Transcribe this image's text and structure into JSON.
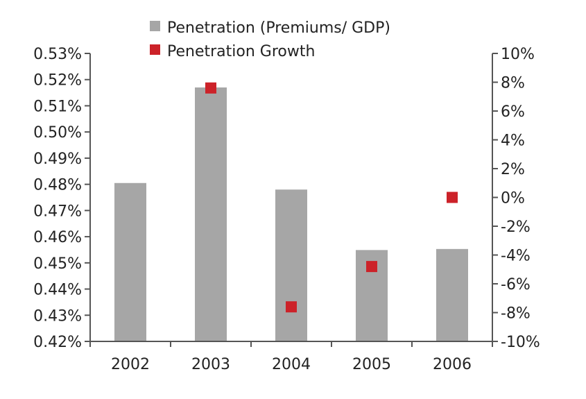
{
  "chart_data": {
    "type": "bar",
    "categories": [
      "2002",
      "2003",
      "2004",
      "2005",
      "2006"
    ],
    "series": [
      {
        "name": "Penetration (Premiums/ GDP)",
        "kind": "bar",
        "axis": "left",
        "color": "#a6a6a6",
        "values": [
          0.4805,
          0.517,
          0.478,
          0.4549,
          0.4553
        ]
      },
      {
        "name": "Penetration Growth",
        "kind": "scatter",
        "axis": "right",
        "color": "#cc2229",
        "values": [
          null,
          7.6,
          -7.6,
          -4.8,
          0.0
        ]
      }
    ],
    "y_left": {
      "ylim": [
        0.42,
        0.53
      ],
      "ticks": [
        0.42,
        0.43,
        0.44,
        0.45,
        0.46,
        0.47,
        0.48,
        0.49,
        0.5,
        0.51,
        0.52,
        0.53
      ],
      "tick_labels": [
        "0.42%",
        "0.43%",
        "0.44%",
        "0.45%",
        "0.46%",
        "0.47%",
        "0.48%",
        "0.49%",
        "0.50%",
        "0.51%",
        "0.52%",
        "0.53%"
      ]
    },
    "y_right": {
      "ylim": [
        -10,
        10
      ],
      "ticks": [
        -10,
        -8,
        -6,
        -4,
        -2,
        0,
        2,
        4,
        6,
        8,
        10
      ],
      "tick_labels": [
        "-10%",
        "-8%",
        "-6%",
        "-4%",
        "-2%",
        "0%",
        "2%",
        "4%",
        "6%",
        "8%",
        "10%"
      ]
    },
    "legend": {
      "position": "top",
      "items": [
        "Penetration (Premiums/ GDP)",
        "Penetration Growth"
      ]
    },
    "grid": false
  }
}
